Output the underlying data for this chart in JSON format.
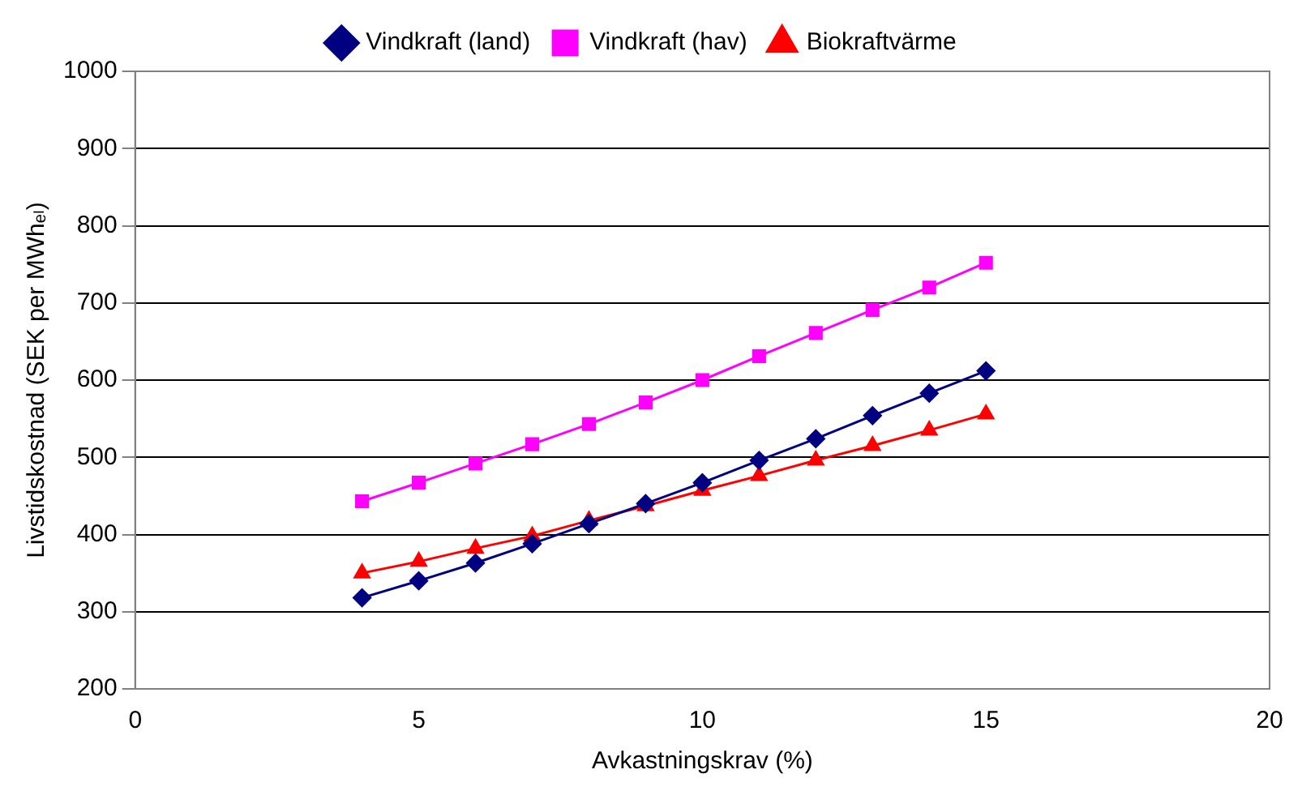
{
  "chart_data": {
    "type": "line",
    "xlabel": "Avkastningskrav (%)",
    "ylabel": "Livstidskostnad (SEK per MWhₑₗ)",
    "x": [
      4,
      5,
      6,
      7,
      8,
      9,
      10,
      11,
      12,
      13,
      14,
      15
    ],
    "series": [
      {
        "name": "Vindkraft (land)",
        "color": "#000080",
        "marker": "diamond",
        "values": [
          318,
          340,
          363,
          388,
          414,
          440,
          467,
          496,
          524,
          554,
          583,
          612
        ]
      },
      {
        "name": "Vindkraft (hav)",
        "color": "#ff00ff",
        "marker": "square",
        "values": [
          443,
          467,
          492,
          517,
          543,
          571,
          600,
          631,
          661,
          691,
          720,
          752
        ]
      },
      {
        "name": "Biokraftvärme",
        "color": "#ff0000",
        "marker": "triangle",
        "values": [
          350,
          365,
          382,
          398,
          418,
          437,
          457,
          476,
          496,
          515,
          535,
          556
        ]
      }
    ],
    "xlim": [
      0,
      20
    ],
    "xticks": [
      0,
      5,
      10,
      15,
      20
    ],
    "ylim": [
      200,
      1000
    ],
    "yticks": [
      200,
      300,
      400,
      500,
      600,
      700,
      800,
      900,
      1000
    ],
    "grid": "y",
    "legend": "top"
  }
}
